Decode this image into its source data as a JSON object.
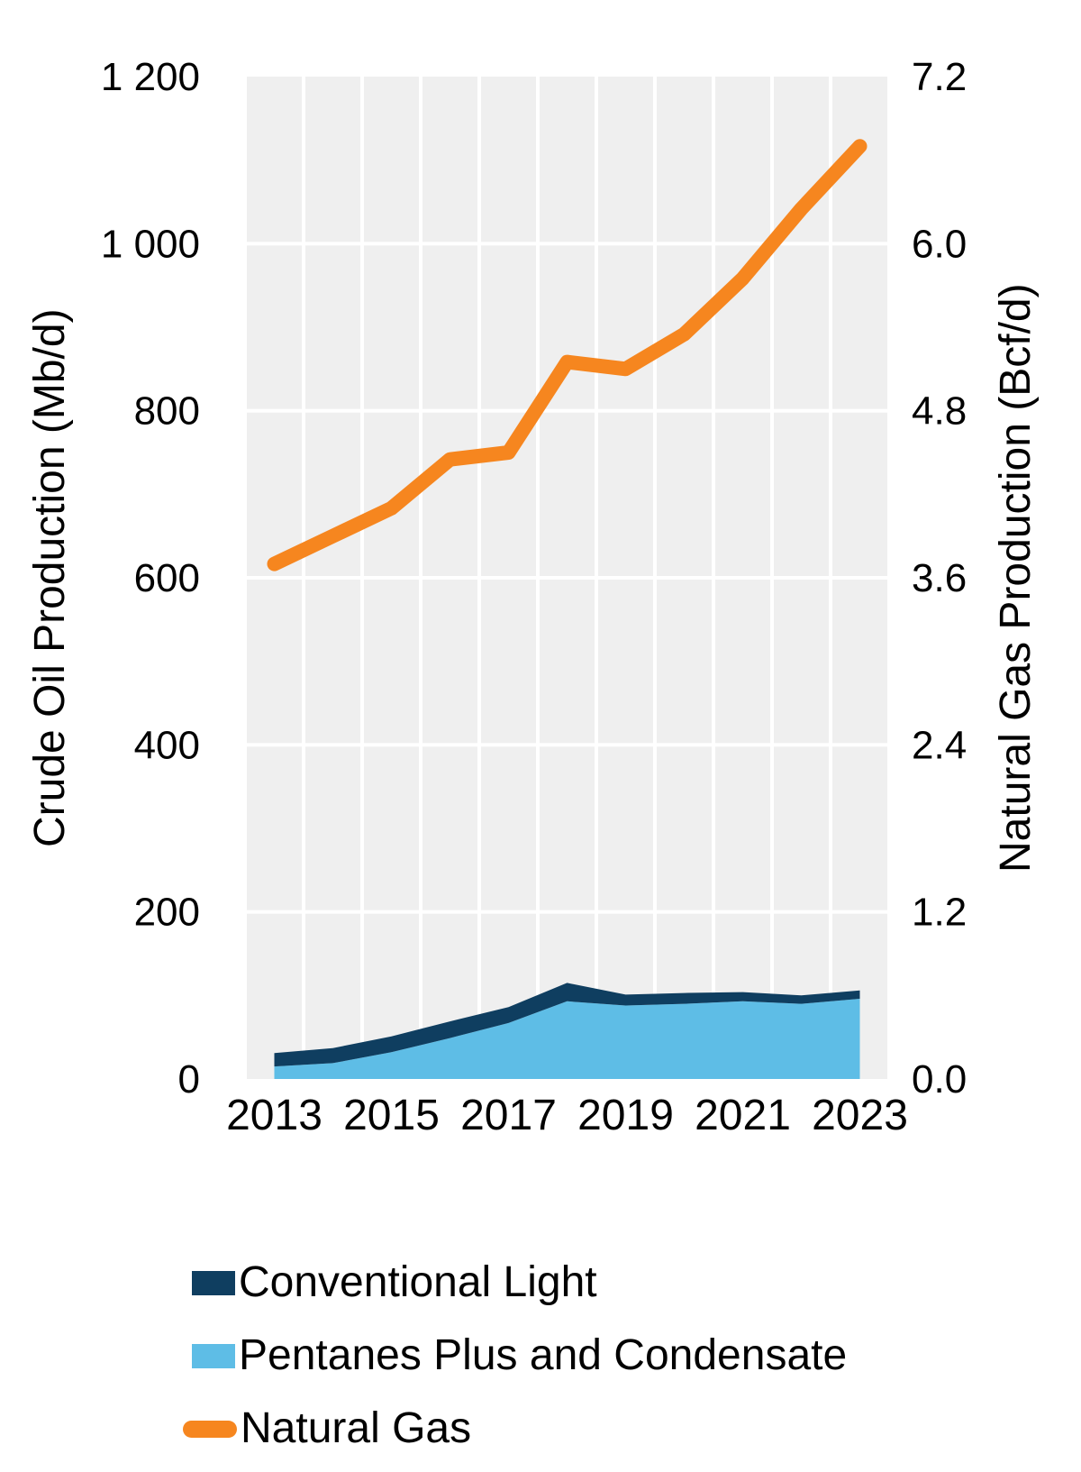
{
  "chart_data": {
    "type": "area",
    "subtype": "stacked-area-with-line-dual-axis",
    "x": {
      "years": [
        2013,
        2014,
        2015,
        2016,
        2017,
        2018,
        2019,
        2020,
        2021,
        2022,
        2023
      ],
      "tick_years": [
        2013,
        2015,
        2017,
        2019,
        2021,
        2023
      ],
      "tick_labels": [
        "2013",
        "2015",
        "2017",
        "2019",
        "2021",
        "2023"
      ]
    },
    "left_axis": {
      "title": "Crude Oil Production (Mb/d)",
      "min": 0,
      "max": 1200,
      "ticks": [
        {
          "value": 0,
          "label": "0"
        },
        {
          "value": 200,
          "label": "200"
        },
        {
          "value": 400,
          "label": "400"
        },
        {
          "value": 600,
          "label": "600"
        },
        {
          "value": 800,
          "label": "800"
        },
        {
          "value": 1000,
          "label": "1 000"
        },
        {
          "value": 1200,
          "label": "1 200"
        }
      ]
    },
    "right_axis": {
      "title": "Natural Gas Production (Bcf/d)",
      "min": 0,
      "max": 7.2,
      "ticks": [
        {
          "value": 0,
          "label": "0.0"
        },
        {
          "value": 1.2,
          "label": "1.2"
        },
        {
          "value": 2.4,
          "label": "2.4"
        },
        {
          "value": 3.6,
          "label": "3.6"
        },
        {
          "value": 4.8,
          "label": "4.8"
        },
        {
          "value": 6.0,
          "label": "6.0"
        },
        {
          "value": 7.2,
          "label": "7.2"
        }
      ]
    },
    "series": [
      {
        "name": "Conventional Light",
        "render": "area-stacked",
        "axis": "left",
        "color": "#0f3e60",
        "values": [
          16,
          18,
          19,
          20,
          19,
          22,
          13,
          13,
          11,
          10,
          10
        ]
      },
      {
        "name": "Pentanes Plus and Condensate",
        "render": "area-stacked",
        "axis": "left",
        "color": "#5ebde6",
        "values": [
          15,
          19,
          32,
          49,
          67,
          93,
          88,
          90,
          93,
          90,
          96
        ]
      },
      {
        "name": "Natural Gas",
        "render": "line",
        "axis": "right",
        "color": "#f6861f",
        "values": [
          3.7,
          3.9,
          4.1,
          4.45,
          4.5,
          5.15,
          5.1,
          5.35,
          5.75,
          6.25,
          6.7
        ]
      }
    ],
    "stack_order_bottom_to_top": [
      "Pentanes Plus and Condensate",
      "Conventional Light"
    ],
    "plot_background": "#efefef",
    "grid_color": "#ffffff",
    "grid": true,
    "legend_position": "bottom-left"
  },
  "legend": {
    "items": [
      {
        "label": "Conventional Light",
        "swatch": "square",
        "color": "#0f3e60"
      },
      {
        "label": "Pentanes Plus and Condensate",
        "swatch": "square",
        "color": "#5ebde6"
      },
      {
        "label": "Natural Gas",
        "swatch": "pill",
        "color": "#f6861f"
      }
    ]
  }
}
